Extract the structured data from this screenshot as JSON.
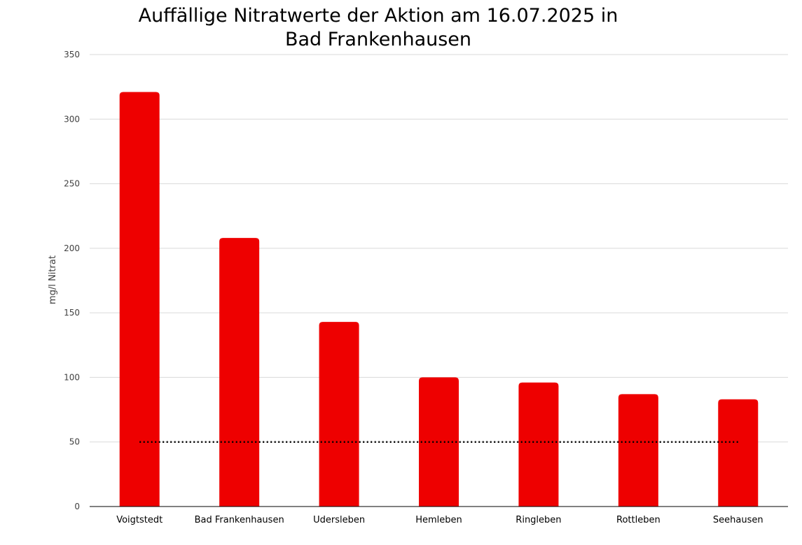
{
  "chart_data": {
    "type": "bar",
    "title_lines": [
      "Auffällige Nitratwerte der Aktion am 16.07.2025 in",
      "Bad Frankenhausen"
    ],
    "xlabel": "",
    "ylabel": "mg/l Nitrat",
    "categories": [
      "Voigtstedt",
      "Bad Frankenhausen",
      "Udersleben",
      "Hemleben",
      "Ringleben",
      "Rottleben",
      "Seehausen"
    ],
    "series": [
      {
        "values": [
          321,
          208,
          143,
          100,
          96,
          87,
          83
        ],
        "color": "#ee0000"
      }
    ],
    "reference_line": {
      "value": 50,
      "style": "dotted",
      "color": "#000000"
    },
    "ylim": [
      0,
      350
    ],
    "yticks": [
      0,
      50,
      100,
      150,
      200,
      250,
      300,
      350
    ],
    "grid": true,
    "legend": "none"
  }
}
